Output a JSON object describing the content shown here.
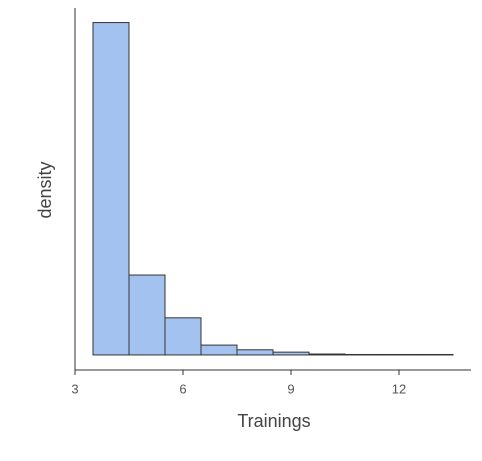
{
  "chart_data": {
    "type": "histogram",
    "x_label": "Trainings",
    "y_label": "density",
    "bins": [
      3.5,
      4.5,
      5.5,
      6.5,
      7.5,
      8.5,
      9.5,
      10.5,
      11.5,
      12.5,
      13.5
    ],
    "values": [
      0.707,
      0.17,
      0.079,
      0.021,
      0.011,
      0.006,
      0.002,
      0.001,
      0.001,
      0.001
    ],
    "color": "#a4c2f0",
    "edge_color": "#333333",
    "xlim": [
      3,
      14
    ],
    "xticks": [
      3,
      6,
      9,
      12
    ],
    "ylim": [
      -0.032,
      0.738
    ]
  }
}
